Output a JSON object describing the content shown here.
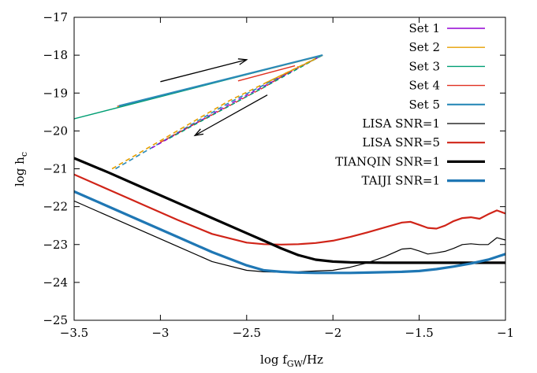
{
  "chart_data": {
    "type": "line",
    "xlabel": {
      "main": "log f",
      "sub": "GW",
      "tail": "/Hz"
    },
    "ylabel": {
      "main": "log h",
      "sub": "c"
    },
    "xlim": [
      -3.5,
      -1
    ],
    "ylim": [
      -25,
      -17
    ],
    "xticks": [
      -3.5,
      -3,
      -2.5,
      -2,
      -1.5,
      -1
    ],
    "xtick_labels": [
      "−3.5",
      "−3",
      "−2.5",
      "−2",
      "−1.5",
      "−1"
    ],
    "yticks": [
      -25,
      -24,
      -23,
      -22,
      -21,
      -20,
      -19,
      -18,
      -17
    ],
    "ytick_labels": [
      "−25",
      "−24",
      "−23",
      "−22",
      "−21",
      "−20",
      "−19",
      "−18",
      "−17"
    ],
    "grid": false,
    "legend_position": "top-right",
    "series": [
      {
        "name": "Set 1",
        "color": "#9400d3",
        "width": 1.4,
        "dash": "",
        "x": [
          -3.25,
          -2.06
        ],
        "y": [
          -19.35,
          -18.0
        ]
      },
      {
        "name": "Set 2",
        "color": "#e69f00",
        "width": 1.4,
        "dash": "",
        "x": [
          -3.25,
          -2.06
        ],
        "y": [
          -19.36,
          -18.01
        ]
      },
      {
        "name": "Set 3",
        "color": "#009e73",
        "width": 1.4,
        "dash": "",
        "x": [
          -3.5,
          -2.06
        ],
        "y": [
          -19.68,
          -18.0
        ]
      },
      {
        "name": "Set 4",
        "color": "#e03020",
        "width": 1.4,
        "dash": "",
        "x": [
          -2.55,
          -2.22
        ],
        "y": [
          -18.68,
          -18.28
        ]
      },
      {
        "name": "Set 5",
        "color": "#2a8ab8",
        "width": 2.2,
        "dash": "",
        "x": [
          -3.24,
          -2.06
        ],
        "y": [
          -19.34,
          -18.0
        ]
      },
      {
        "name": "LISA SNR=1",
        "color": "#000000",
        "width": 1.2,
        "dash": "",
        "x": [
          -3.5,
          -3.3,
          -3.1,
          -2.9,
          -2.7,
          -2.5,
          -2.4,
          -2.3,
          -2.2,
          -2.1,
          -2.0,
          -1.9,
          -1.8,
          -1.7,
          -1.6,
          -1.55,
          -1.5,
          -1.45,
          -1.4,
          -1.35,
          -1.3,
          -1.25,
          -1.2,
          -1.15,
          -1.1,
          -1.05,
          -1.0
        ],
        "y": [
          -21.85,
          -22.25,
          -22.65,
          -23.05,
          -23.45,
          -23.68,
          -23.72,
          -23.73,
          -23.72,
          -23.7,
          -23.68,
          -23.6,
          -23.48,
          -23.32,
          -23.12,
          -23.1,
          -23.17,
          -23.25,
          -23.22,
          -23.18,
          -23.1,
          -23.0,
          -22.98,
          -23.0,
          -23.0,
          -22.82,
          -22.88
        ]
      },
      {
        "name": "LISA SNR=5",
        "color": "#d02418",
        "width": 2.2,
        "dash": "",
        "x": [
          -3.5,
          -3.3,
          -3.1,
          -2.9,
          -2.7,
          -2.5,
          -2.4,
          -2.3,
          -2.2,
          -2.1,
          -2.0,
          -1.9,
          -1.8,
          -1.7,
          -1.6,
          -1.55,
          -1.5,
          -1.45,
          -1.4,
          -1.35,
          -1.3,
          -1.25,
          -1.2,
          -1.15,
          -1.1,
          -1.05,
          -1.0
        ],
        "y": [
          -21.15,
          -21.55,
          -21.95,
          -22.35,
          -22.72,
          -22.95,
          -22.99,
          -23.0,
          -22.99,
          -22.96,
          -22.9,
          -22.8,
          -22.68,
          -22.55,
          -22.42,
          -22.4,
          -22.48,
          -22.56,
          -22.58,
          -22.5,
          -22.38,
          -22.3,
          -22.28,
          -22.32,
          -22.2,
          -22.1,
          -22.18
        ]
      },
      {
        "name": "TIANQIN SNR=1",
        "color": "#000000",
        "width": 3.2,
        "dash": "",
        "x": [
          -3.5,
          -3.3,
          -3.1,
          -2.9,
          -2.7,
          -2.5,
          -2.4,
          -2.3,
          -2.2,
          -2.1,
          -2.0,
          -1.9,
          -1.7,
          -1.5,
          -1.3,
          -1.0
        ],
        "y": [
          -20.72,
          -21.1,
          -21.5,
          -21.9,
          -22.3,
          -22.7,
          -22.9,
          -23.1,
          -23.28,
          -23.4,
          -23.45,
          -23.47,
          -23.48,
          -23.48,
          -23.48,
          -23.48
        ]
      },
      {
        "name": "TAIJI SNR=1",
        "color": "#1f77b4",
        "width": 3.2,
        "dash": "",
        "x": [
          -3.5,
          -3.3,
          -3.1,
          -2.9,
          -2.7,
          -2.5,
          -2.4,
          -2.3,
          -2.2,
          -2.1,
          -2.0,
          -1.9,
          -1.8,
          -1.7,
          -1.6,
          -1.5,
          -1.4,
          -1.3,
          -1.2,
          -1.1,
          -1.0
        ],
        "y": [
          -21.6,
          -22.0,
          -22.4,
          -22.8,
          -23.2,
          -23.55,
          -23.68,
          -23.72,
          -23.74,
          -23.75,
          -23.75,
          -23.75,
          -23.74,
          -23.73,
          -23.72,
          -23.7,
          -23.65,
          -23.58,
          -23.5,
          -23.4,
          -23.25
        ]
      }
    ],
    "decor_lines": [
      {
        "color": "#e69f00",
        "width": 1.6,
        "dash": "6 4",
        "x": [
          -3.28,
          -2.6,
          -2.06
        ],
        "y": [
          -21.0,
          -19.2,
          -18.0
        ]
      },
      {
        "color": "#2a8ab8",
        "width": 1.6,
        "dash": "6 4",
        "x": [
          -3.26,
          -2.6,
          -2.06
        ],
        "y": [
          -21.0,
          -19.25,
          -18.0
        ]
      },
      {
        "color": "#9400d3",
        "width": 1.4,
        "dash": "5 4",
        "x": [
          -3.05,
          -2.6,
          -2.06
        ],
        "y": [
          -20.45,
          -19.3,
          -18.0
        ]
      },
      {
        "color": "#e03020",
        "width": 1.4,
        "dash": "5 4",
        "x": [
          -3.0,
          -2.4,
          -2.2
        ],
        "y": [
          -20.3,
          -18.85,
          -18.3
        ]
      },
      {
        "color": "#009e73",
        "width": 1.4,
        "dash": "5 4",
        "x": [
          -2.95,
          -2.4,
          -2.06
        ],
        "y": [
          -20.2,
          -18.85,
          -18.0
        ]
      },
      {
        "color": "#e69f00",
        "width": 1.4,
        "dash": "",
        "x": [
          -2.4,
          -2.1
        ],
        "y": [
          -18.75,
          -18.1
        ]
      }
    ],
    "arrows": [
      {
        "x1": -3.0,
        "y1": -18.7,
        "x2": -2.5,
        "y2": -18.12
      },
      {
        "x1": -2.38,
        "y1": -19.05,
        "x2": -2.8,
        "y2": -20.12
      }
    ]
  }
}
